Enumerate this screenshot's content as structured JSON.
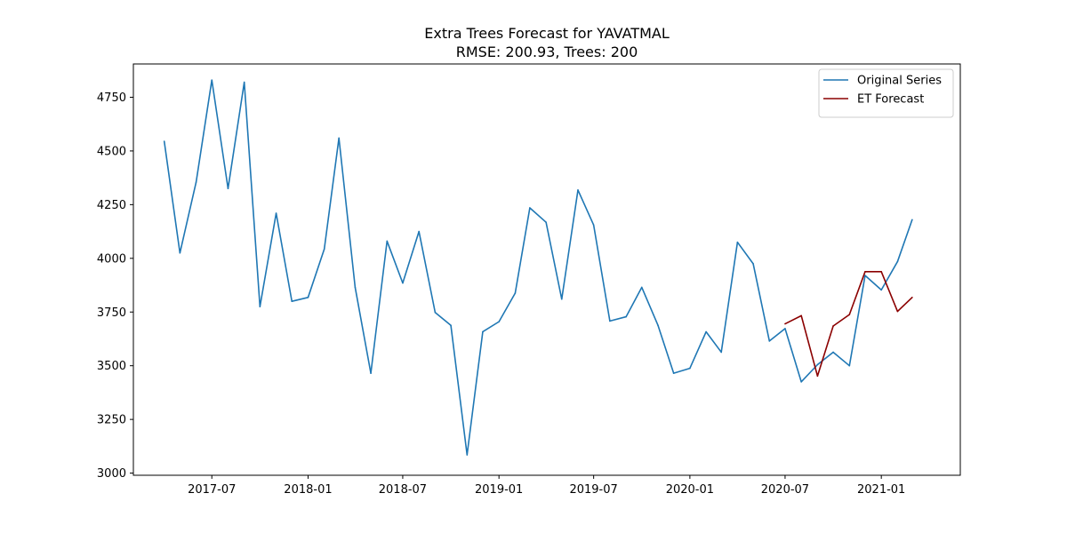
{
  "chart_data": {
    "type": "line",
    "title": "Extra Trees Forecast for YAVATMAL",
    "subtitle": "RMSE: 200.93, Trees: 200",
    "xlabel": "",
    "ylabel": "",
    "ylim": [
      2990,
      4905
    ],
    "xlim": [
      "2017-02-01",
      "2021-06-01"
    ],
    "grid": false,
    "legend_position": "top-right",
    "x_ticks": [
      "2017-07",
      "2018-01",
      "2018-07",
      "2019-01",
      "2019-07",
      "2020-01",
      "2020-07",
      "2021-01"
    ],
    "y_ticks": [
      3000,
      3250,
      3500,
      3750,
      4000,
      4250,
      4500,
      4750
    ],
    "series": [
      {
        "name": "Original Series",
        "color": "#1f77b4",
        "points": [
          [
            "2017-04",
            4545
          ],
          [
            "2017-05",
            4025
          ],
          [
            "2017-06",
            4355
          ],
          [
            "2017-07",
            4830
          ],
          [
            "2017-08",
            4325
          ],
          [
            "2017-09",
            4820
          ],
          [
            "2017-10",
            3775
          ],
          [
            "2017-11",
            4210
          ],
          [
            "2017-12",
            3800
          ],
          [
            "2018-01",
            3818
          ],
          [
            "2018-02",
            4043
          ],
          [
            "2018-03",
            4560
          ],
          [
            "2018-04",
            3865
          ],
          [
            "2018-05",
            3465
          ],
          [
            "2018-06",
            4080
          ],
          [
            "2018-07",
            3885
          ],
          [
            "2018-08",
            4125
          ],
          [
            "2018-09",
            3748
          ],
          [
            "2018-10",
            3688
          ],
          [
            "2018-11",
            3085
          ],
          [
            "2018-12",
            3658
          ],
          [
            "2019-01",
            3705
          ],
          [
            "2019-02",
            3838
          ],
          [
            "2019-03",
            4235
          ],
          [
            "2019-04",
            4168
          ],
          [
            "2019-05",
            3810
          ],
          [
            "2019-06",
            4318
          ],
          [
            "2019-07",
            4155
          ],
          [
            "2019-08",
            3708
          ],
          [
            "2019-09",
            3728
          ],
          [
            "2019-10",
            3865
          ],
          [
            "2019-11",
            3688
          ],
          [
            "2019-12",
            3465
          ],
          [
            "2020-01",
            3488
          ],
          [
            "2020-02",
            3658
          ],
          [
            "2020-03",
            3563
          ],
          [
            "2020-04",
            4075
          ],
          [
            "2020-05",
            3975
          ],
          [
            "2020-06",
            3615
          ],
          [
            "2020-07",
            3673
          ],
          [
            "2020-08",
            3425
          ],
          [
            "2020-09",
            3505
          ],
          [
            "2020-10",
            3563
          ],
          [
            "2020-11",
            3500
          ],
          [
            "2020-12",
            3920
          ],
          [
            "2021-01",
            3853
          ],
          [
            "2021-02",
            3985
          ],
          [
            "2021-03",
            4180
          ]
        ]
      },
      {
        "name": "ET Forecast",
        "color": "#8b0000",
        "points": [
          [
            "2020-07",
            3695
          ],
          [
            "2020-08",
            3733
          ],
          [
            "2020-09",
            3452
          ],
          [
            "2020-10",
            3685
          ],
          [
            "2020-11",
            3738
          ],
          [
            "2020-12",
            3938
          ],
          [
            "2021-01",
            3938
          ],
          [
            "2021-02",
            3753
          ],
          [
            "2021-03",
            3818
          ]
        ]
      }
    ]
  }
}
